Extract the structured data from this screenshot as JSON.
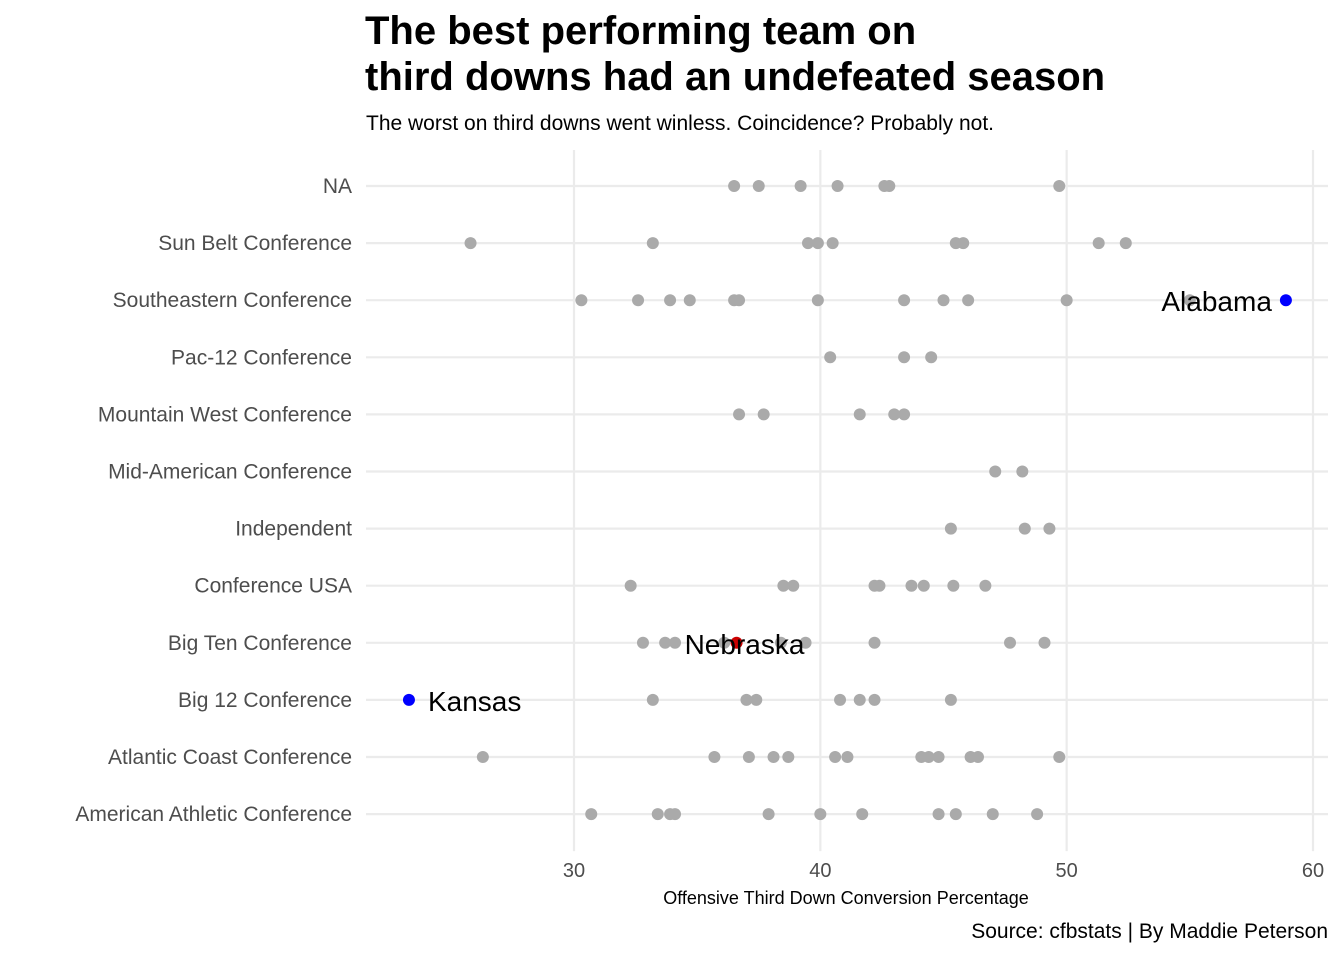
{
  "title": "The best performing team on\nthird downs had an undefeated season",
  "subtitle": "The worst on third downs went winless. Coincidence? Probably not.",
  "caption": "Source: cfbstats | By Maddie Peterson",
  "chart_data": {
    "type": "scatter",
    "title": "The best performing team on\nthird downs had an undefeated season",
    "subtitle": "The worst on third downs went winless. Coincidence? Probably not.",
    "xlabel": "Offensive Third Down Conversion Percentage",
    "ylabel": "",
    "xlim": [
      21.6,
      60.7
    ],
    "xticks": [
      30,
      40,
      50,
      60
    ],
    "x_tick_labels": [
      "30",
      "40",
      "50",
      "60"
    ],
    "grid": true,
    "legend": "none",
    "categories": [
      "American Athletic Conference",
      "Atlantic Coast Conference",
      "Big 12 Conference",
      "Big Ten Conference",
      "Conference USA",
      "Independent",
      "Mid-American Conference",
      "Mountain West Conference",
      "Pac-12 Conference",
      "Southeastern Conference",
      "Sun Belt Conference",
      "NA"
    ],
    "series": [
      {
        "values": [
          {
            "category": "NA",
            "x": [
              36.5,
              37.5,
              39.2,
              40.7,
              42.6,
              42.8,
              49.7
            ]
          },
          {
            "category": "Sun Belt Conference",
            "x": [
              25.8,
              33.2,
              39.5,
              39.9,
              40.5,
              45.5,
              45.8,
              51.3,
              52.4
            ]
          },
          {
            "category": "Southeastern Conference",
            "x": [
              30.3,
              32.6,
              33.9,
              34.7,
              36.5,
              36.7,
              39.9,
              43.4,
              45.0,
              46.0,
              50.0,
              55.0
            ]
          },
          {
            "category": "Pac-12 Conference",
            "x": [
              40.4,
              43.4,
              44.5
            ]
          },
          {
            "category": "Mountain West Conference",
            "x": [
              36.7,
              37.7,
              41.6,
              43.0,
              43.4
            ]
          },
          {
            "category": "Mid-American Conference",
            "x": [
              47.1,
              48.2
            ]
          },
          {
            "category": "Independent",
            "x": [
              45.3,
              48.3,
              49.3
            ]
          },
          {
            "category": "Conference USA",
            "x": [
              32.3,
              38.5,
              38.9,
              42.2,
              42.4,
              43.7,
              44.2,
              45.4,
              46.7
            ]
          },
          {
            "category": "Big Ten Conference",
            "x": [
              32.8,
              33.7,
              34.1,
              36.1,
              38.4,
              39.4,
              42.2,
              47.7,
              49.1
            ]
          },
          {
            "category": "Big 12 Conference",
            "x": [
              33.2,
              37.0,
              37.4,
              40.8,
              41.6,
              42.2,
              45.3
            ]
          },
          {
            "category": "Atlantic Coast Conference",
            "x": [
              26.3,
              35.7,
              37.1,
              38.1,
              38.7,
              40.6,
              41.1,
              44.1,
              44.4,
              44.8,
              46.1,
              46.4,
              49.7
            ]
          },
          {
            "category": "American Athletic Conference",
            "x": [
              30.7,
              33.4,
              33.9,
              34.1,
              37.9,
              40.0,
              41.7,
              44.8,
              45.5,
              47.0,
              48.8
            ]
          }
        ],
        "color": "#aaaaaa"
      }
    ],
    "highlights": [
      {
        "label": "Alabama",
        "category": "Southeastern Conference",
        "x": 58.9,
        "color": "#0000ff"
      },
      {
        "label": "Kansas",
        "category": "Big 12 Conference",
        "x": 23.3,
        "color": "#0000ff"
      },
      {
        "label": "Nebraska",
        "category": "Big Ten Conference",
        "x": 36.6,
        "color": "#cc0000"
      }
    ],
    "colors": {
      "points": "#aaaaaa",
      "grid": "#ebebeb",
      "axis_text": "#4d4d4d"
    }
  }
}
